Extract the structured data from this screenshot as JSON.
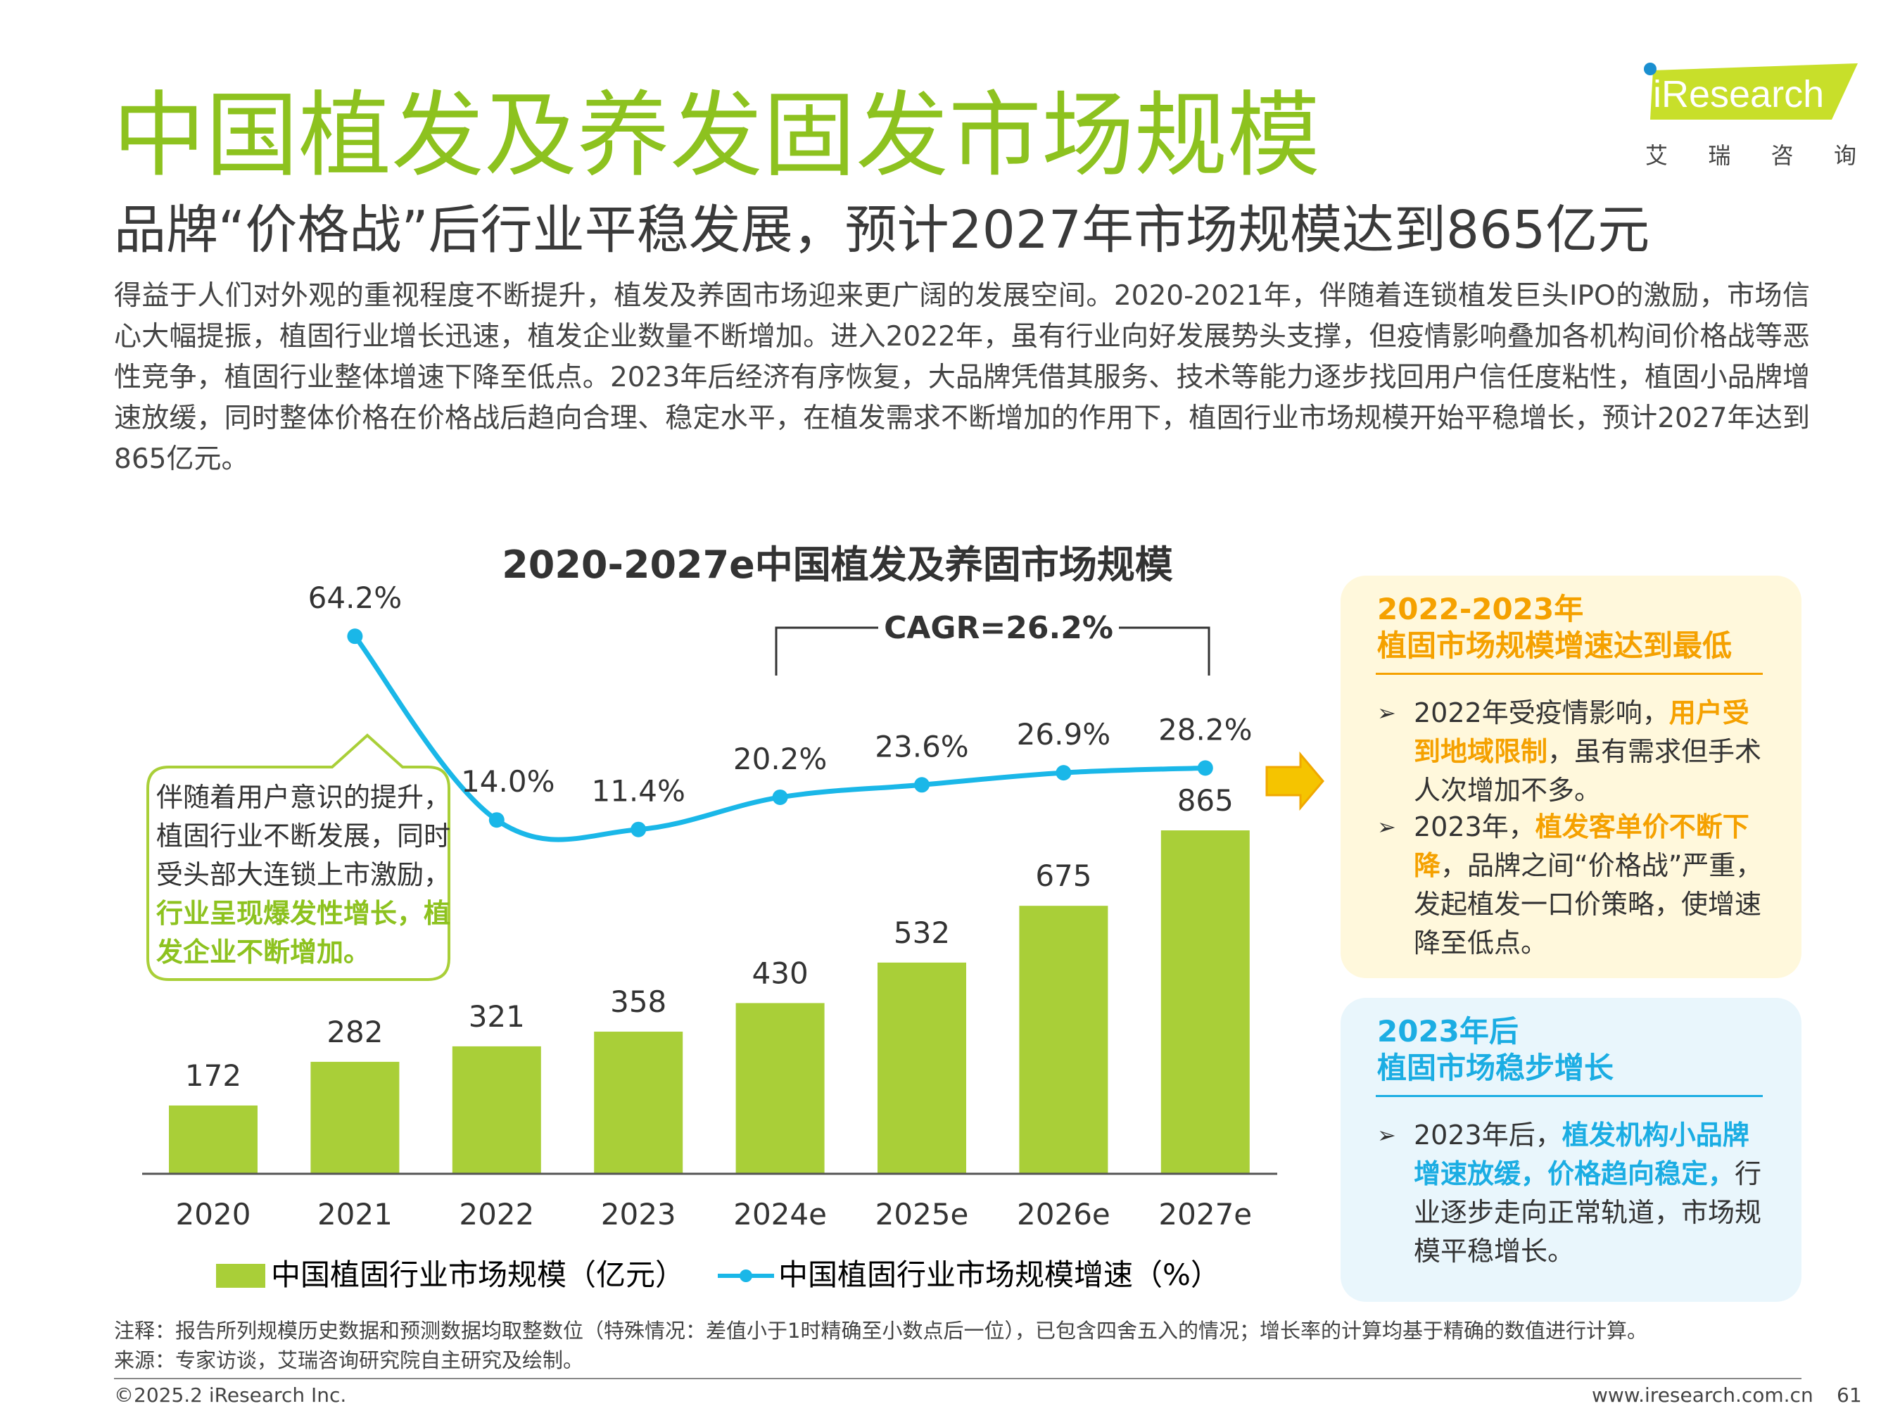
{
  "header": {
    "title": "中国植发及养发固发市场规模",
    "subtitle": "品牌“价格战”后行业平稳发展，预计2027年市场规模达到865亿元"
  },
  "logo": {
    "wordmark": "iResearch",
    "tagline": [
      "艾",
      "瑞",
      "咨",
      "询"
    ]
  },
  "intro": "得益于人们对外观的重视程度不断提升，植发及养固市场迎来更广阔的发展空间。2020-2021年，伴随着连锁植发巨头IPO的激励，市场信心大幅提振，植固行业增长迅速，植发企业数量不断增加。进入2022年，虽有行业向好发展势头支撑，但疫情影响叠加各机构间价格战等恶性竞争，植固行业整体增速下降至低点。2023年后经济有序恢复，大品牌凭借其服务、技术等能力逐步找回用户信任度粘性，植固小品牌增速放缓，同时整体价格在价格战后趋向合理、稳定水平，在植发需求不断增加的作用下，植固行业市场规模开始平稳增长，预计2027年达到865亿元。",
  "chart_data": {
    "type": "bar",
    "title": "2020-2027e中国植发及养固市场规模",
    "categories": [
      "2020",
      "2021",
      "2022",
      "2023",
      "2024e",
      "2025e",
      "2026e",
      "2027e"
    ],
    "series": [
      {
        "name": "中国植固行业市场规模（亿元）",
        "type": "bar",
        "values": [
          172,
          282,
          321,
          358,
          430,
          532,
          675,
          865
        ],
        "labels": [
          "172",
          "282",
          "321",
          "358",
          "430",
          "532",
          "675",
          "865"
        ]
      },
      {
        "name": "中国植固行业市场规模增速（%）",
        "type": "line",
        "values": [
          null,
          64.2,
          14.0,
          11.4,
          20.2,
          23.6,
          26.9,
          28.2
        ],
        "labels": [
          "",
          "64.2%",
          "14.0%",
          "11.4%",
          "20.2%",
          "23.6%",
          "26.9%",
          "28.2%"
        ]
      }
    ],
    "cagr_label": "CAGR=26.2%",
    "legend_position": "bottom",
    "colors": {
      "bar": "#a9cf38",
      "line": "#1ab7e8",
      "title_green": "#8dc21f"
    }
  },
  "note_left": {
    "line1": "伴随着用户意识的提升，植固行业不断发展，同时受头部大连锁上市激励，",
    "highlight": "行业呈现爆发性增长，植发企业不断增加。"
  },
  "callout_yellow": {
    "heading1": "2022-2023年",
    "heading2": "植固市场规模增速达到最低",
    "bullets": [
      {
        "pre": "2022年受疫情影响，",
        "hl": "用户受到地域限制",
        "post": "，虽有需求但手术人次增加不多。"
      },
      {
        "pre": "2023年，",
        "hl": "植发客单价不断下降",
        "post": "，品牌之间“价格战”严重，发起植发一口价策略，使增速降至低点。"
      }
    ]
  },
  "callout_blue": {
    "heading1": "2023年后",
    "heading2": "植固市场稳步增长",
    "bullets": [
      {
        "pre": "2023年后，",
        "hl": "植发机构小品牌增速放缓，价格趋向稳定，",
        "post": "行业逐步走向正常轨道，市场规模平稳增长。"
      }
    ]
  },
  "footer": {
    "note": "注释：报告所列规模历史数据和预测数据均取整数位（特殊情况：差值小于1时精确至小数点后一位），已包含四舍五入的情况；增长率的计算均基于精确的数值进行计算。",
    "source": "来源：专家访谈，艾瑞咨询研究院自主研究及绘制。",
    "copyright": "©2025.2 iResearch Inc.",
    "website": "www.iresearch.com.cn",
    "page": "61"
  }
}
